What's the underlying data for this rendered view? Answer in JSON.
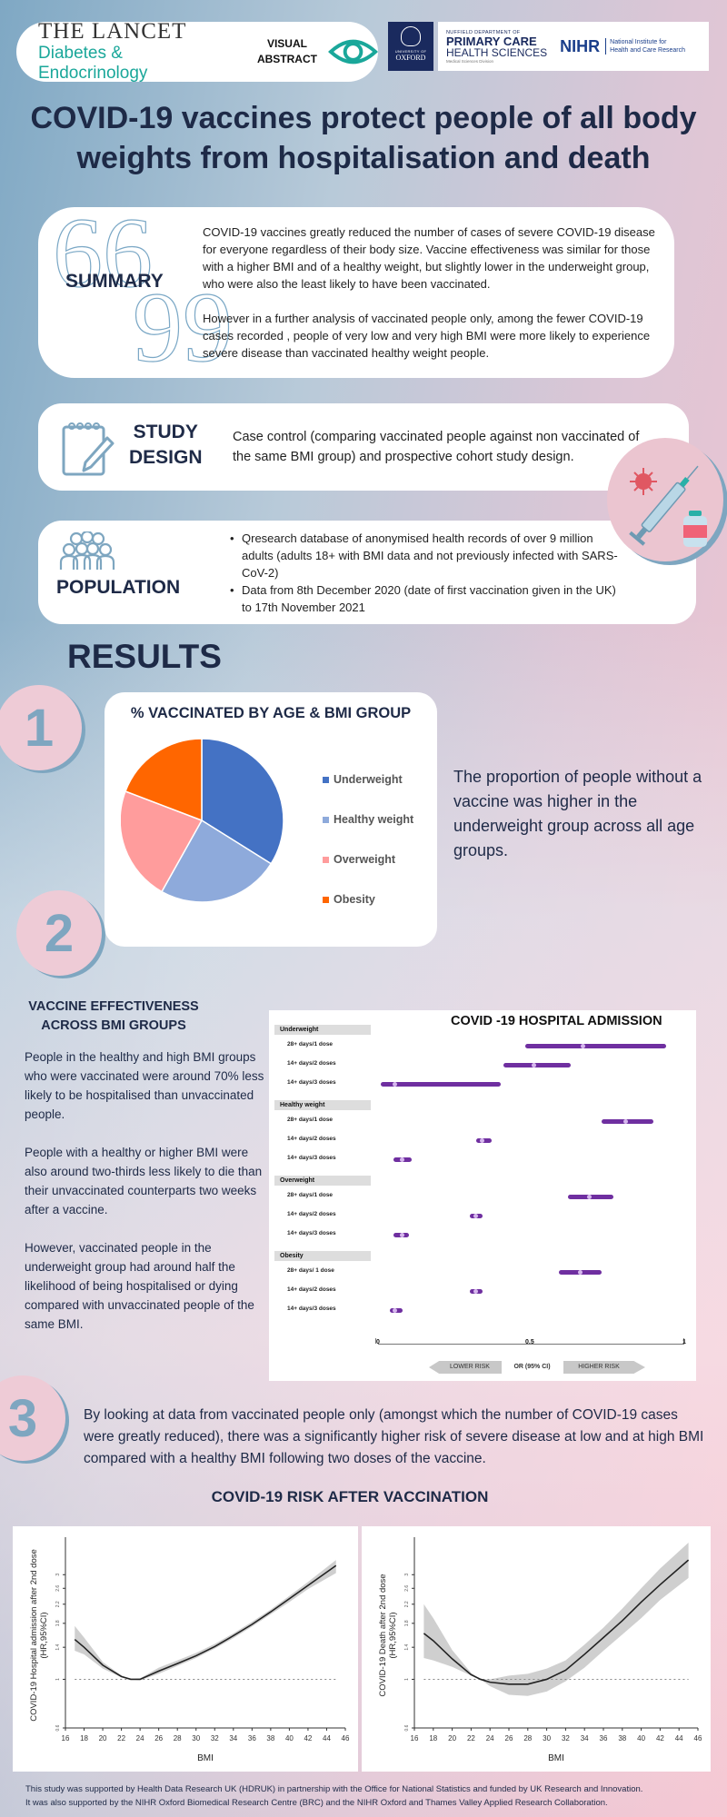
{
  "header": {
    "journal_title": "THE LANCET",
    "journal_subtitle": "Diabetes & Endocrinology",
    "visual_abstract_line1": "VISUAL",
    "visual_abstract_line2": "ABSTRACT",
    "oxford_university_of": "UNIVERSITY OF",
    "oxford_name": "OXFORD",
    "nuffield_dept": "NUFFIELD DEPARTMENT OF",
    "primary_care": "PRIMARY CARE",
    "health_sciences": "HEALTH SCIENCES",
    "medical_sciences": "Medical Sciences Division",
    "nihr": "NIHR",
    "nihr_line1": "National Institute for",
    "nihr_line2": "Health and Care Research",
    "accent_teal": "#1aa79a",
    "navy": "#1a2a5e"
  },
  "title": {
    "line1": "COVID-19 vaccines protect people of all body",
    "line2": "weights from hospitalisation and death"
  },
  "summary": {
    "label": "SUMMARY",
    "open_quote": "66",
    "close_quote": "99",
    "paragraph1": "COVID-19 vaccines greatly reduced the number of cases of severe COVID-19 disease for everyone regardless of their body size. Vaccine effectiveness was similar for those with a higher BMI and of a healthy weight, but slightly lower in the underweight group, who were also the least likely to have been vaccinated.",
    "paragraph2": "However in a further analysis of vaccinated people only, among the fewer COVID-19 cases recorded , people of very low and very high BMI were more likely to experience severe disease than vaccinated healthy weight people."
  },
  "study_design": {
    "label_line1": "STUDY",
    "label_line2": "DESIGN",
    "text": "Case control (comparing vaccinated people against non vaccinated of the same BMI group) and prospective cohort study design."
  },
  "population": {
    "label": "POPULATION",
    "bullets": [
      "Qresearch database of anonymised health records of over 9 million adults (adults 18+ with BMI data and not previously infected with SARS-CoV-2)",
      "Data from 8th December 2020 (date of first vaccination given in the UK) to 17th November 2021"
    ]
  },
  "results": {
    "heading": "RESULTS",
    "numbers": [
      "1",
      "2",
      "3"
    ],
    "result1_text": "The proportion of people without a vaccine was higher in the underweight group across all age groups.",
    "ve_title_line1": "VACCINE EFFECTIVENESS",
    "ve_title_line2": "ACROSS BMI GROUPS",
    "ve_paragraphs": [
      "People in the healthy and high BMI groups who were vaccinated were around 70% less likely to be hospitalised than unvaccinated people.",
      "People with a healthy or higher BMI were also around two-thirds less likely to die than their unvaccinated counterparts two weeks after a vaccine.",
      "However, vaccinated people in the underweight group had around half the likelihood of being hospitalised or dying compared with unvaccinated people of the same BMI."
    ],
    "result3_text": "By looking at data from vaccinated people only (amongst which the number of COVID-19 cases were greatly reduced), there was a significantly higher risk of severe disease at low and at high BMI compared with a healthy BMI following two doses of the vaccine.",
    "risk_title": "COVID-19 RISK AFTER VACCINATION"
  },
  "chart_data": [
    {
      "type": "pie",
      "title": "% VACCINATED BY AGE & BMI GROUP",
      "categories": [
        "Underweight",
        "Healthy weight",
        "Overweight",
        "Obesity"
      ],
      "values": [
        34,
        25,
        22,
        19
      ],
      "colors": [
        "#4472c4",
        "#8eaadb",
        "#ff9c9c",
        "#ff6600"
      ],
      "legend_position": "right"
    },
    {
      "type": "forest",
      "title": "COVID -19 HOSPITAL ADMISSION",
      "xlabel": "OR (95% CI)",
      "xlim": [
        0,
        1
      ],
      "xticks": [
        "0",
        "0.5",
        "1"
      ],
      "left_arrow": "LOWER RISK",
      "right_arrow": "HIGHER RISK",
      "groups": [
        {
          "name": "Underweight",
          "rows": [
            {
              "label": "28+ days/1 dose",
              "or": 0.67,
              "lo": 0.48,
              "hi": 0.94
            },
            {
              "label": "14+ days/2 doses",
              "or": 0.51,
              "lo": 0.41,
              "hi": 0.63
            },
            {
              "label": "14+ days/3 doses",
              "or": 0.055,
              "lo": 0.01,
              "hi": 0.4
            }
          ]
        },
        {
          "name": "Healthy weight",
          "rows": [
            {
              "label": "28+ days/1 dose",
              "or": 0.81,
              "lo": 0.73,
              "hi": 0.9
            },
            {
              "label": "14+ days/2 doses",
              "or": 0.34,
              "lo": 0.32,
              "hi": 0.37
            },
            {
              "label": "14+ days/3 doses",
              "or": 0.08,
              "lo": 0.05,
              "hi": 0.11
            }
          ]
        },
        {
          "name": "Overweight",
          "rows": [
            {
              "label": "28+ days/1 dose",
              "or": 0.69,
              "lo": 0.62,
              "hi": 0.77
            },
            {
              "label": "14+ days/2 doses",
              "or": 0.32,
              "lo": 0.3,
              "hi": 0.34
            },
            {
              "label": "14+ days/3 doses",
              "or": 0.08,
              "lo": 0.05,
              "hi": 0.1
            }
          ]
        },
        {
          "name": "Obesity",
          "rows": [
            {
              "label": "28+ days/ 1 dose",
              "or": 0.66,
              "lo": 0.59,
              "hi": 0.73
            },
            {
              "label": "14+ days/2 doses",
              "or": 0.32,
              "lo": 0.3,
              "hi": 0.34
            },
            {
              "label": "14+ days/3 doses",
              "or": 0.055,
              "lo": 0.04,
              "hi": 0.08
            }
          ]
        }
      ]
    },
    {
      "type": "line",
      "title": "COVID-19 Hospital admission after 2nd dose",
      "xlabel": "BMI",
      "ylabel": "COVID-19 Hospital admission after 2nd dose (HR,95%CI)",
      "x": [
        17,
        18,
        20,
        22,
        23,
        24,
        26,
        28,
        30,
        32,
        34,
        36,
        38,
        40,
        42,
        45
      ],
      "y": [
        1.52,
        1.4,
        1.16,
        1.03,
        1.0,
        1.0,
        1.09,
        1.18,
        1.28,
        1.41,
        1.58,
        1.78,
        2.03,
        2.33,
        2.68,
        3.3
      ],
      "ci_low": [
        1.35,
        1.3,
        1.12,
        1.02,
        1.0,
        0.99,
        1.06,
        1.15,
        1.25,
        1.38,
        1.54,
        1.74,
        1.98,
        2.25,
        2.58,
        3.05
      ],
      "ci_high": [
        1.75,
        1.55,
        1.2,
        1.04,
        1.0,
        1.01,
        1.13,
        1.22,
        1.32,
        1.45,
        1.62,
        1.83,
        2.08,
        2.4,
        2.78,
        3.5
      ],
      "xticks": [
        16,
        18,
        20,
        22,
        24,
        26,
        28,
        30,
        32,
        34,
        36,
        38,
        40,
        42,
        44,
        46
      ],
      "yticks": [
        0.6,
        1,
        1.4,
        1.8,
        2.2,
        2.6,
        3
      ],
      "reference_line": 1
    },
    {
      "type": "line",
      "title": "COVID-19 Death after 2nd dose",
      "xlabel": "BMI",
      "ylabel": "COVID-19 Death after 2nd dose (HR,95%CI)",
      "x": [
        17,
        18,
        20,
        22,
        23,
        24,
        26,
        28,
        30,
        32,
        34,
        36,
        38,
        40,
        42,
        45
      ],
      "y": [
        1.62,
        1.5,
        1.24,
        1.05,
        1.0,
        0.97,
        0.95,
        0.95,
        1.0,
        1.1,
        1.3,
        1.55,
        1.85,
        2.25,
        2.7,
        3.5
      ],
      "ci_low": [
        1.25,
        1.22,
        1.14,
        1.04,
        1.0,
        0.93,
        0.85,
        0.84,
        0.88,
        0.98,
        1.13,
        1.35,
        1.6,
        1.9,
        2.3,
        2.9
      ],
      "ci_high": [
        2.2,
        1.9,
        1.36,
        1.07,
        1.0,
        1.0,
        1.04,
        1.06,
        1.12,
        1.22,
        1.44,
        1.72,
        2.1,
        2.6,
        3.2,
        4.2
      ],
      "xticks": [
        16,
        18,
        20,
        22,
        24,
        26,
        28,
        30,
        32,
        34,
        36,
        38,
        40,
        42,
        44,
        46
      ],
      "yticks": [
        0.6,
        1,
        1.4,
        1.8,
        2.2,
        2.6,
        3
      ],
      "reference_line": 1
    }
  ],
  "charts": {
    "forest_title": "COVID -19 HOSPITAL ADMISSION",
    "forest_xlabel": "OR (95% CI)",
    "forest_left": "LOWER RISK",
    "forest_right": "HIGHER RISK",
    "spline1_ylabel_1": "COVID-19 Hospital admission after 2nd dose",
    "spline1_ylabel_2": "(HR,95%CI)",
    "spline2_ylabel_1": "COVID-19 Death after 2nd dose",
    "spline2_ylabel_2": "(HR,95%CI)",
    "bmi_label": "BMI",
    "pie_title": "% VACCINATED BY AGE & BMI GROUP"
  },
  "footer": {
    "line1": "This study was supported by Health Data Research UK (HDRUK) in partnership with the Office for National Statistics and funded by UK Research and Innovation.",
    "line2": "It was also supported by the NIHR Oxford Biomedical Research Centre (BRC) and the NIHR Oxford and Thames Valley Applied Research Collaboration."
  }
}
